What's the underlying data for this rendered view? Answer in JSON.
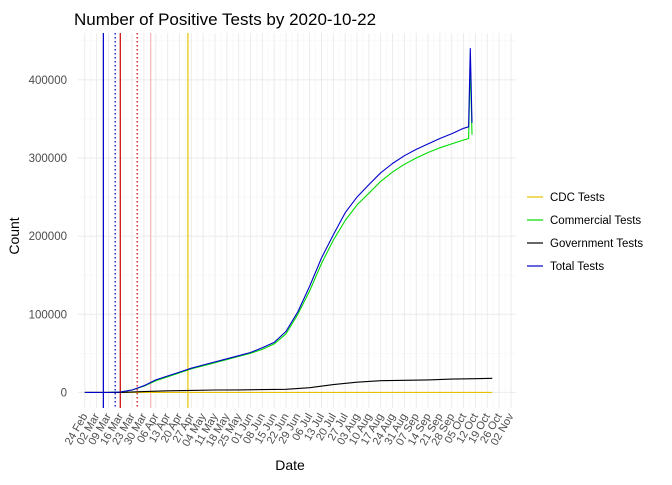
{
  "chart_data": {
    "type": "line",
    "title": "Number of Positive Tests by  2020-10-22",
    "xlabel": "Date",
    "ylabel": "Count",
    "x_tick_labels": [
      "24 Feb",
      "02 Mar",
      "09 Mar",
      "16 Mar",
      "23 Mar",
      "30 Mar",
      "06 Apr",
      "13 Apr",
      "20 Apr",
      "27 Apr",
      "04 May",
      "11 May",
      "18 May",
      "25 May",
      "01 Jun",
      "08 Jun",
      "15 Jun",
      "22 Jun",
      "29 Jun",
      "06 Jul",
      "13 Jul",
      "20 Jul",
      "27 Jul",
      "03 Aug",
      "10 Aug",
      "17 Aug",
      "24 Aug",
      "31 Aug",
      "07 Sep",
      "14 Sep",
      "21 Sep",
      "28 Sep",
      "05 Oct",
      "12 Oct",
      "19 Oct",
      "26 Oct",
      "02 Nov"
    ],
    "x_start": "2020-02-24",
    "xlim": [
      "2020-02-20",
      "2020-11-05"
    ],
    "y_ticks": [
      0,
      100000,
      200000,
      300000,
      400000
    ],
    "y_tick_labels": [
      "0",
      "100000",
      "200000",
      "300000",
      "400000"
    ],
    "ylim": [
      -20000,
      460000
    ],
    "grid": true,
    "legend_position": "right",
    "vertical_lines": [
      {
        "date": "2020-03-06",
        "color": "#0000cc",
        "style": "solid"
      },
      {
        "date": "2020-03-13",
        "color": "#0000cc",
        "style": "dotted"
      },
      {
        "date": "2020-03-16",
        "color": "#cc0000",
        "style": "solid"
      },
      {
        "date": "2020-03-26",
        "color": "#cc0000",
        "style": "dotted"
      },
      {
        "date": "2020-04-03",
        "color": "#f4b6b6",
        "style": "solid"
      },
      {
        "date": "2020-04-25",
        "color": "#e6c200",
        "style": "solid"
      }
    ],
    "series": [
      {
        "name": "CDC Tests",
        "color": "#e6c200",
        "points": [
          [
            "2020-02-24",
            0
          ],
          [
            "2020-10-22",
            0
          ]
        ]
      },
      {
        "name": "Commercial Tests",
        "color": "#00dd00",
        "points": [
          [
            "2020-03-09",
            0
          ],
          [
            "2020-03-16",
            500
          ],
          [
            "2020-03-23",
            3000
          ],
          [
            "2020-03-30",
            8000
          ],
          [
            "2020-04-06",
            15000
          ],
          [
            "2020-04-13",
            20000
          ],
          [
            "2020-04-20",
            25000
          ],
          [
            "2020-04-27",
            30000
          ],
          [
            "2020-05-04",
            34000
          ],
          [
            "2020-05-11",
            38000
          ],
          [
            "2020-05-18",
            42000
          ],
          [
            "2020-05-25",
            46000
          ],
          [
            "2020-06-01",
            50000
          ],
          [
            "2020-06-08",
            55000
          ],
          [
            "2020-06-15",
            62000
          ],
          [
            "2020-06-22",
            75000
          ],
          [
            "2020-06-29",
            100000
          ],
          [
            "2020-07-06",
            130000
          ],
          [
            "2020-07-13",
            165000
          ],
          [
            "2020-07-20",
            195000
          ],
          [
            "2020-07-27",
            220000
          ],
          [
            "2020-08-03",
            240000
          ],
          [
            "2020-08-10",
            255000
          ],
          [
            "2020-08-17",
            270000
          ],
          [
            "2020-08-24",
            282000
          ],
          [
            "2020-08-31",
            292000
          ],
          [
            "2020-09-07",
            300000
          ],
          [
            "2020-09-14",
            307000
          ],
          [
            "2020-09-21",
            313000
          ],
          [
            "2020-09-28",
            318000
          ],
          [
            "2020-10-05",
            323000
          ],
          [
            "2020-10-08",
            325000
          ],
          [
            "2020-10-09",
            420000
          ],
          [
            "2020-10-10",
            330000
          ]
        ]
      },
      {
        "name": "Government Tests",
        "color": "#000000",
        "points": [
          [
            "2020-02-24",
            0
          ],
          [
            "2020-03-16",
            0
          ],
          [
            "2020-03-30",
            1000
          ],
          [
            "2020-04-13",
            2000
          ],
          [
            "2020-04-27",
            2500
          ],
          [
            "2020-05-11",
            3000
          ],
          [
            "2020-05-25",
            3200
          ],
          [
            "2020-06-08",
            3500
          ],
          [
            "2020-06-22",
            4000
          ],
          [
            "2020-07-06",
            6000
          ],
          [
            "2020-07-20",
            10000
          ],
          [
            "2020-08-03",
            13000
          ],
          [
            "2020-08-17",
            15000
          ],
          [
            "2020-08-31",
            15500
          ],
          [
            "2020-09-14",
            16000
          ],
          [
            "2020-09-28",
            17000
          ],
          [
            "2020-10-12",
            17500
          ],
          [
            "2020-10-22",
            18000
          ]
        ]
      },
      {
        "name": "Total Tests",
        "color": "#0000cc",
        "points": [
          [
            "2020-02-24",
            0
          ],
          [
            "2020-03-09",
            0
          ],
          [
            "2020-03-16",
            500
          ],
          [
            "2020-03-23",
            3000
          ],
          [
            "2020-03-30",
            8500
          ],
          [
            "2020-04-06",
            16000
          ],
          [
            "2020-04-13",
            21000
          ],
          [
            "2020-04-20",
            26000
          ],
          [
            "2020-04-27",
            31000
          ],
          [
            "2020-05-04",
            35000
          ],
          [
            "2020-05-11",
            39000
          ],
          [
            "2020-05-18",
            43000
          ],
          [
            "2020-05-25",
            47000
          ],
          [
            "2020-06-01",
            51000
          ],
          [
            "2020-06-08",
            57000
          ],
          [
            "2020-06-15",
            64000
          ],
          [
            "2020-06-22",
            78000
          ],
          [
            "2020-06-29",
            103000
          ],
          [
            "2020-07-06",
            136000
          ],
          [
            "2020-07-13",
            172000
          ],
          [
            "2020-07-20",
            202000
          ],
          [
            "2020-07-27",
            230000
          ],
          [
            "2020-08-03",
            250000
          ],
          [
            "2020-08-10",
            266000
          ],
          [
            "2020-08-17",
            281000
          ],
          [
            "2020-08-24",
            293000
          ],
          [
            "2020-08-31",
            303000
          ],
          [
            "2020-09-07",
            311000
          ],
          [
            "2020-09-14",
            318000
          ],
          [
            "2020-09-21",
            325000
          ],
          [
            "2020-09-28",
            331000
          ],
          [
            "2020-10-05",
            338000
          ],
          [
            "2020-10-08",
            340000
          ],
          [
            "2020-10-09",
            440000
          ],
          [
            "2020-10-10",
            345000
          ]
        ]
      }
    ]
  }
}
